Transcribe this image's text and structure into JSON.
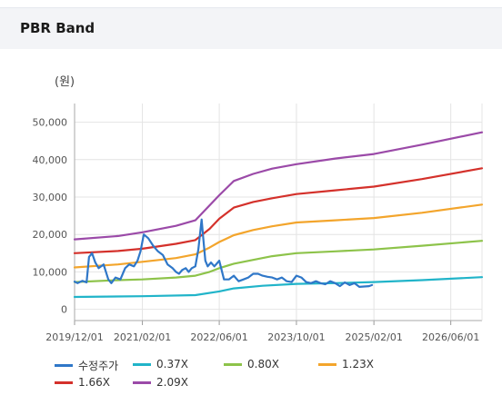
{
  "header": {
    "title": "PBR Band"
  },
  "chart_data": {
    "type": "line",
    "unit_label": "(원)",
    "yticks": [
      0,
      10000,
      20000,
      30000,
      40000,
      50000
    ],
    "ytick_labels": [
      "0",
      "10,000",
      "20,000",
      "30,000",
      "40,000",
      "50,000"
    ],
    "ylim": [
      -3000,
      55000
    ],
    "xlim": [
      "2019-12-01",
      "2026-12-15"
    ],
    "xtick_labels": [
      "2019/12/01",
      "2021/02/01",
      "2022/06/01",
      "2023/10/01",
      "2025/02/01",
      "2026/06/01"
    ],
    "xticks": [
      "2019-12-01",
      "2021-02-01",
      "2022-06-01",
      "2023-10-01",
      "2025-02-01",
      "2026-06-01"
    ],
    "grid": true,
    "legend": "bottom",
    "series": [
      {
        "name": "수정주가",
        "color": "#2f77c8",
        "x": [
          "2019-12-01",
          "2019-12-20",
          "2020-01-20",
          "2020-02-15",
          "2020-03-01",
          "2020-03-20",
          "2020-04-10",
          "2020-05-01",
          "2020-06-01",
          "2020-07-01",
          "2020-07-20",
          "2020-08-15",
          "2020-09-15",
          "2020-10-15",
          "2020-11-10",
          "2020-12-10",
          "2021-01-01",
          "2021-01-20",
          "2021-02-10",
          "2021-03-10",
          "2021-04-10",
          "2021-05-10",
          "2021-06-10",
          "2021-07-10",
          "2021-08-10",
          "2021-09-01",
          "2021-09-20",
          "2021-10-10",
          "2021-11-01",
          "2021-11-20",
          "2021-12-10",
          "2022-01-01",
          "2022-01-20",
          "2022-02-10",
          "2022-02-20",
          "2022-03-05",
          "2022-03-20",
          "2022-04-10",
          "2022-05-01",
          "2022-06-01",
          "2022-07-01",
          "2022-08-01",
          "2022-09-01",
          "2022-10-01",
          "2022-11-01",
          "2022-12-01",
          "2023-01-01",
          "2023-02-01",
          "2023-03-01",
          "2023-04-01",
          "2023-05-01",
          "2023-06-01",
          "2023-07-01",
          "2023-08-01",
          "2023-09-01",
          "2023-10-01",
          "2023-11-01",
          "2023-12-01",
          "2024-01-01",
          "2024-02-01",
          "2024-03-01",
          "2024-04-01",
          "2024-05-01",
          "2024-06-01",
          "2024-07-01",
          "2024-08-01",
          "2024-09-01",
          "2024-10-01",
          "2024-11-01",
          "2024-12-01",
          "2025-01-01",
          "2025-01-20"
        ],
        "values": [
          7400,
          7000,
          7600,
          7200,
          14000,
          15000,
          12500,
          11000,
          12000,
          8000,
          7000,
          8500,
          8000,
          11000,
          12000,
          11500,
          13000,
          15500,
          20000,
          19000,
          17000,
          15500,
          14500,
          12000,
          11000,
          10000,
          9500,
          10500,
          11000,
          10000,
          11000,
          11500,
          16000,
          24000,
          19000,
          13000,
          11500,
          12500,
          11500,
          13000,
          8000,
          8000,
          9000,
          7500,
          8000,
          8500,
          9500,
          9500,
          9000,
          8700,
          8500,
          8000,
          8500,
          7500,
          7300,
          9000,
          8500,
          7300,
          7000,
          7500,
          7000,
          6700,
          7500,
          7000,
          6200,
          7200,
          6500,
          7000,
          6000,
          6100,
          6200,
          6500
        ]
      },
      {
        "name": "0.37X",
        "color": "#21b4c9",
        "x": [
          "2019-12-01",
          "2021-02-01",
          "2022-01-01",
          "2022-06-01",
          "2022-09-01",
          "2023-03-01",
          "2023-10-01",
          "2024-06-01",
          "2025-02-01",
          "2025-12-01",
          "2026-12-15"
        ],
        "values": [
          3300,
          3500,
          3800,
          4800,
          5600,
          6300,
          6800,
          7000,
          7300,
          7800,
          8600
        ]
      },
      {
        "name": "0.80X",
        "color": "#8dc34a",
        "x": [
          "2019-12-01",
          "2020-09-01",
          "2021-02-01",
          "2021-09-01",
          "2022-01-01",
          "2022-04-01",
          "2022-06-01",
          "2022-09-01",
          "2023-01-01",
          "2023-05-01",
          "2023-10-01",
          "2024-06-01",
          "2025-02-01",
          "2025-12-01",
          "2026-12-15"
        ],
        "values": [
          7300,
          7800,
          8000,
          8500,
          9000,
          10000,
          11000,
          12200,
          13200,
          14200,
          15000,
          15500,
          16000,
          17000,
          18300
        ]
      },
      {
        "name": "1.23X",
        "color": "#f3a52c",
        "x": [
          "2019-12-01",
          "2020-09-01",
          "2021-02-01",
          "2021-09-01",
          "2022-01-01",
          "2022-04-01",
          "2022-06-01",
          "2022-09-01",
          "2023-01-01",
          "2023-05-01",
          "2023-10-01",
          "2024-06-01",
          "2025-02-01",
          "2025-12-01",
          "2026-12-15"
        ],
        "values": [
          11200,
          12000,
          12700,
          13700,
          14700,
          16500,
          18000,
          19800,
          21200,
          22200,
          23200,
          23800,
          24400,
          25800,
          28000
        ]
      },
      {
        "name": "1.66X",
        "color": "#d4312b",
        "x": [
          "2019-12-01",
          "2020-09-01",
          "2021-02-01",
          "2021-09-01",
          "2022-01-01",
          "2022-04-01",
          "2022-06-01",
          "2022-09-01",
          "2023-01-01",
          "2023-05-01",
          "2023-10-01",
          "2024-06-01",
          "2025-02-01",
          "2025-12-01",
          "2026-12-15"
        ],
        "values": [
          15000,
          15600,
          16200,
          17500,
          18500,
          21500,
          24200,
          27200,
          28700,
          29700,
          30800,
          31800,
          32800,
          34800,
          37700
        ]
      },
      {
        "name": "2.09X",
        "color": "#9b4aa8",
        "x": [
          "2019-12-01",
          "2020-09-01",
          "2021-02-01",
          "2021-09-01",
          "2022-01-01",
          "2022-04-01",
          "2022-06-01",
          "2022-09-01",
          "2023-01-01",
          "2023-05-01",
          "2023-10-01",
          "2024-06-01",
          "2025-02-01",
          "2025-12-01",
          "2026-12-15"
        ],
        "values": [
          18700,
          19600,
          20600,
          22300,
          23800,
          27800,
          30500,
          34300,
          36200,
          37600,
          38800,
          40300,
          41500,
          44000,
          47300
        ]
      }
    ]
  }
}
